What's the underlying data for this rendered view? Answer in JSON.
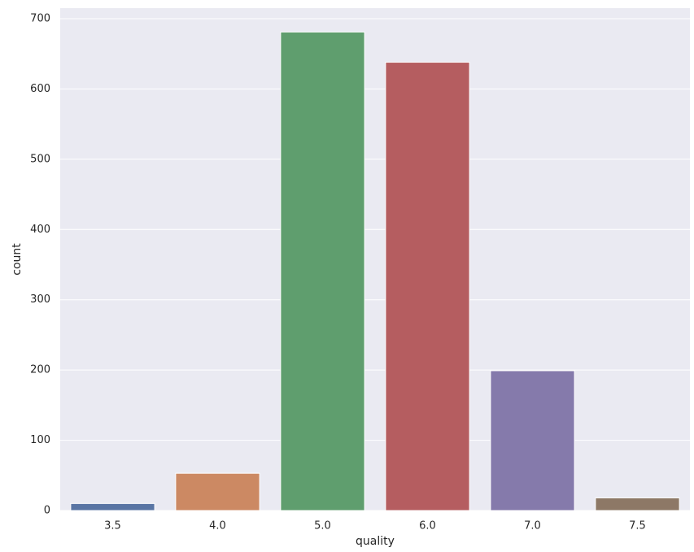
{
  "chart_data": {
    "type": "bar",
    "x_label": "quality",
    "y_label": "count",
    "categories": [
      "3.5",
      "4.0",
      "5.0",
      "6.0",
      "7.0",
      "7.5"
    ],
    "values": [
      10,
      53,
      681,
      638,
      199,
      18
    ],
    "colors": [
      "#5975a4",
      "#cc8963",
      "#5f9e6e",
      "#b55d60",
      "#857aab",
      "#8d7866"
    ],
    "ylim": [
      0,
      715
    ],
    "yticks": [
      0,
      100,
      200,
      300,
      400,
      500,
      600,
      700
    ],
    "grid": true
  }
}
